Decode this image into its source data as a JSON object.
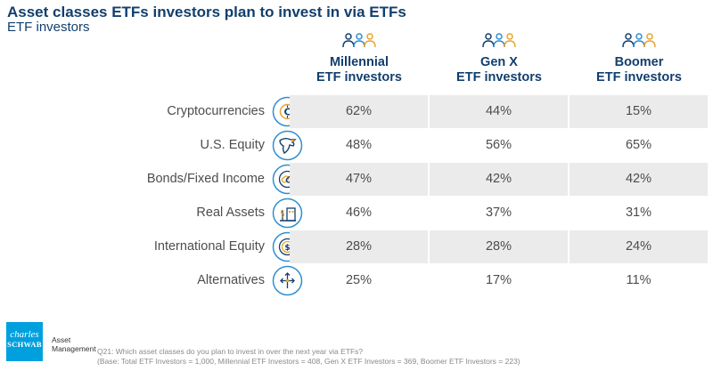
{
  "header": {
    "title": "Asset classes ETFs investors plan to invest in via ETFs",
    "subtitle": "ETF investors"
  },
  "columns": [
    {
      "line1": "Millennial",
      "line2": "ETF investors"
    },
    {
      "line1": "Gen X",
      "line2": "ETF investors"
    },
    {
      "line1": "Boomer",
      "line2": "ETF investors"
    }
  ],
  "rows": [
    {
      "label": "Cryptocurrencies",
      "icon": "crypto-coin-icon",
      "values": [
        "62%",
        "44%",
        "15%"
      ]
    },
    {
      "label": "U.S. Equity",
      "icon": "eagle-icon",
      "values": [
        "48%",
        "56%",
        "65%"
      ]
    },
    {
      "label": "Bonds/Fixed Income",
      "icon": "chain-link-icon",
      "values": [
        "47%",
        "42%",
        "42%"
      ]
    },
    {
      "label": "Real Assets",
      "icon": "property-icon",
      "values": [
        "46%",
        "37%",
        "31%"
      ]
    },
    {
      "label": "International Equity",
      "icon": "dollar-coin-icon",
      "values": [
        "28%",
        "28%",
        "24%"
      ]
    },
    {
      "label": "Alternatives",
      "icon": "arrows-icon",
      "values": [
        "25%",
        "17%",
        "11%"
      ]
    }
  ],
  "chart_data": {
    "type": "table",
    "title": "Asset classes ETFs investors plan to invest in via ETFs",
    "subtitle": "ETF investors",
    "categories": [
      "Cryptocurrencies",
      "U.S. Equity",
      "Bonds/Fixed Income",
      "Real Assets",
      "International Equity",
      "Alternatives"
    ],
    "series": [
      {
        "name": "Millennial ETF investors",
        "values": [
          62,
          48,
          47,
          46,
          28,
          25
        ]
      },
      {
        "name": "Gen X ETF investors",
        "values": [
          44,
          56,
          42,
          37,
          28,
          17
        ]
      },
      {
        "name": "Boomer ETF investors",
        "values": [
          15,
          65,
          42,
          31,
          24,
          11
        ]
      }
    ],
    "unit": "%"
  },
  "footer": {
    "logo_line1": "charles",
    "logo_line2": "SCHWAB",
    "brand_line1": "Asset",
    "brand_line2": "Management",
    "question": "Q21: Which asset classes do you plan to invest in over the next year via ETFs?",
    "base": "(Base: Total ETF Investors = 1,000, Millennial ETF Investors = 408, Gen X ETF Investors = 369, Boomer ETF Investors = 223)"
  },
  "colors": {
    "title": "#123f6e",
    "icon_ring": "#2f8fd0",
    "icon_accent": "#e8a42a",
    "shade": "#ebebeb",
    "logo_bg": "#00a0df"
  }
}
